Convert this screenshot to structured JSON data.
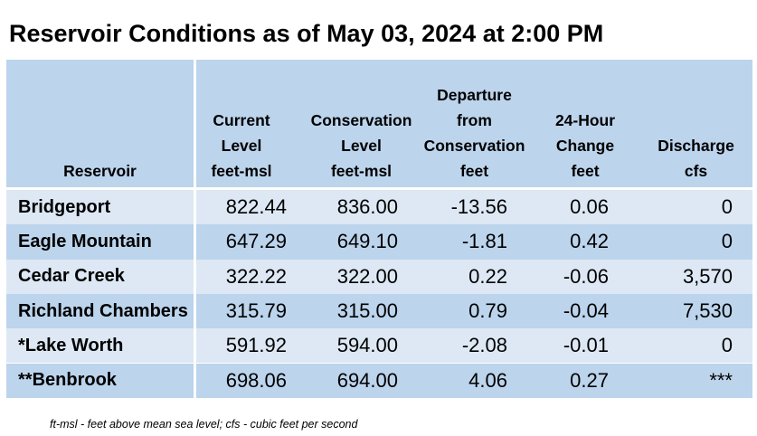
{
  "title": "Reservoir Conditions as of May 03, 2024 at 2:00 PM",
  "headers": {
    "reservoir": [
      "Reservoir"
    ],
    "current": [
      "Current",
      "Level",
      "feet-msl"
    ],
    "conservation": [
      "Conservation",
      "Level",
      "feet-msl"
    ],
    "departure": [
      "Departure",
      "from",
      "Conservation",
      "feet"
    ],
    "change": [
      "24-Hour",
      "Change",
      "feet"
    ],
    "discharge": [
      "Discharge",
      "cfs"
    ]
  },
  "rows": [
    {
      "name": "Bridgeport",
      "current": "822.44",
      "conservation": "836.00",
      "departure": "-13.56",
      "change": "0.06",
      "discharge": "0"
    },
    {
      "name": "Eagle Mountain",
      "current": "647.29",
      "conservation": "649.10",
      "departure": "-1.81",
      "change": "0.42",
      "discharge": "0"
    },
    {
      "name": "Cedar Creek",
      "current": "322.22",
      "conservation": "322.00",
      "departure": "0.22",
      "change": "-0.06",
      "discharge": "3,570"
    },
    {
      "name": "Richland Chambers",
      "current": "315.79",
      "conservation": "315.00",
      "departure": "0.79",
      "change": "-0.04",
      "discharge": "7,530"
    },
    {
      "name": "*Lake Worth",
      "current": "591.92",
      "conservation": "594.00",
      "departure": "-2.08",
      "change": "-0.01",
      "discharge": "0"
    },
    {
      "name": "**Benbrook",
      "current": "698.06",
      "conservation": "694.00",
      "departure": "4.06",
      "change": "0.27",
      "discharge": "***"
    }
  ],
  "footnote": "ft-msl - feet above mean sea level; cfs - cubic feet per second",
  "colors": {
    "header_bg": "#bcd4ec",
    "row_light": "#dde8f4",
    "row_dark": "#bcd4ec"
  }
}
